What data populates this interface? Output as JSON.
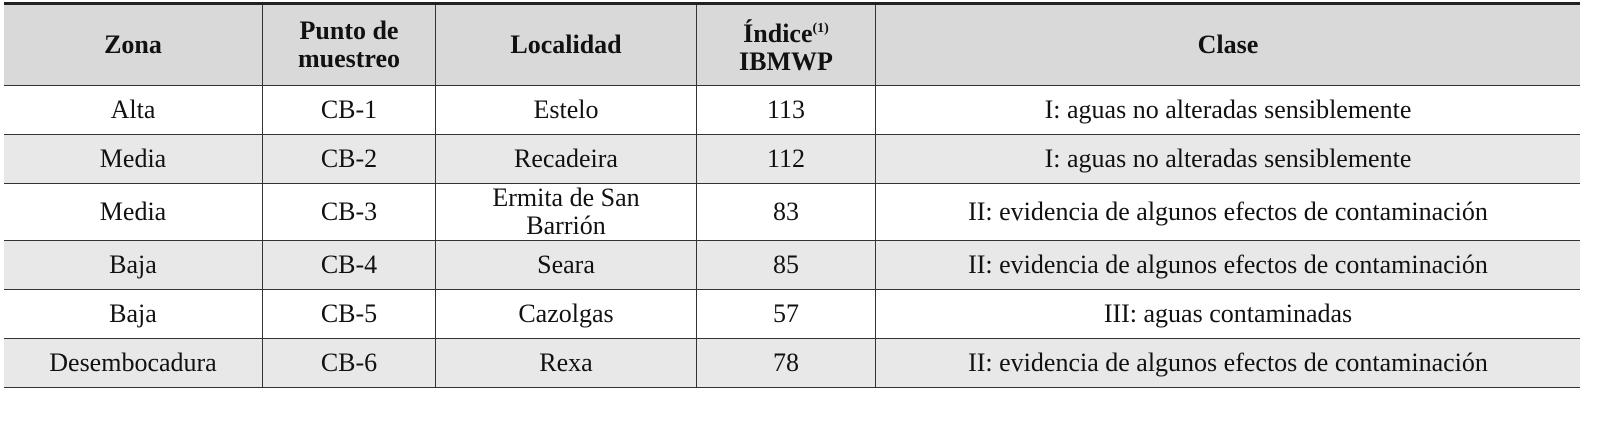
{
  "table": {
    "header": {
      "zona": "Zona",
      "punto": "Punto de muestreo",
      "localidad": "Localidad",
      "indice": "Índice",
      "indice_note": "(1)",
      "indice_sub": "IBMWP",
      "clase": "Clase"
    },
    "rows": [
      [
        "Alta",
        "CB-1",
        "Estelo",
        113,
        "I: aguas no alteradas sensiblemente"
      ],
      [
        "Media",
        "CB-2",
        "Recadeira",
        112,
        "I: aguas no alteradas sensiblemente"
      ],
      [
        "Media",
        "CB-3",
        "Ermita de San Barrión",
        83,
        "II: evidencia de algunos efectos de contaminación"
      ],
      [
        "Baja",
        "CB-4",
        "Seara",
        85,
        "II: evidencia de algunos efectos de contaminación"
      ],
      [
        "Baja",
        "CB-5",
        "Cazolgas",
        57,
        "III: aguas contaminadas"
      ],
      [
        "Desembocadura",
        "CB-6",
        "Rexa",
        78,
        "II: evidencia de algunos efectos de contaminación"
      ]
    ]
  }
}
